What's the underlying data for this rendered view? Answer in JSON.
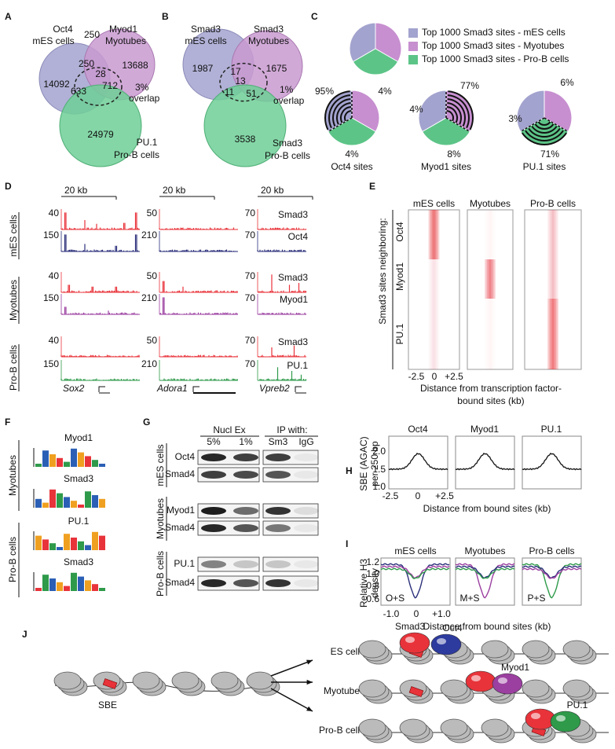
{
  "A": {
    "label": "A",
    "set1": [
      "Oct4",
      "mES cells"
    ],
    "top_count": "250",
    "set2": [
      "Myod1",
      "Myotubes"
    ],
    "set3": [
      "PU.1",
      "Pro-B cells"
    ],
    "counts": [
      "14092",
      "13688",
      "250",
      "28",
      "712",
      "633",
      "24979"
    ],
    "overlap": [
      "3%",
      "overlap"
    ]
  },
  "B": {
    "label": "B",
    "set1": [
      "Smad3",
      "mES cells"
    ],
    "set2": [
      "Smad3",
      "Myotubes"
    ],
    "set3": [
      "Smad3",
      "Pro-B cells"
    ],
    "counts": [
      "1987",
      "1675",
      "17",
      "13",
      "11",
      "51",
      "3538"
    ],
    "overlap": [
      "1%",
      "overlap"
    ]
  },
  "C": {
    "label": "C",
    "legend": [
      "Top 1000 Smad3 sites - mES cells",
      "Top 1000 Smad3 sites - Myotubes",
      "Top 1000 Smad3 sites - Pro-B cells"
    ],
    "pies": [
      {
        "title": "Oct4 sites",
        "labels": [
          "95%",
          "4%",
          "4%"
        ]
      },
      {
        "title": "Myod1 sites",
        "labels": [
          "77%",
          "4%",
          "8%"
        ]
      },
      {
        "title": "PU.1 sites",
        "labels": [
          "6%",
          "3%",
          "71%"
        ]
      }
    ]
  },
  "D": {
    "label": "D",
    "scale": [
      "20 kb",
      "20 kb",
      "20 kb"
    ],
    "rows": [
      "mES cells",
      "Myotubes",
      "Pro-B cells"
    ],
    "tracks": [
      "Smad3",
      "Oct4",
      "Smad3",
      "Myod1",
      "Smad3",
      "PU.1"
    ],
    "ranges": [
      [
        "40",
        "150",
        "40",
        "150",
        "40",
        "150"
      ],
      [
        "50",
        "210",
        "50",
        "210",
        "50",
        "210"
      ],
      [
        "70",
        "70",
        "70",
        "70",
        "70",
        "70"
      ]
    ],
    "genes": [
      "Sox2",
      "Adora1",
      "Vpreb2"
    ]
  },
  "E": {
    "label": "E",
    "columns": [
      "mES cells",
      "Myotubes",
      "Pro-B cells"
    ],
    "rows": [
      "Oct4",
      "Myod1",
      "PU.1"
    ],
    "row_title": "Smad3 sites neighboring:",
    "xticks": [
      "-2.5",
      "0",
      "+2.5"
    ],
    "caption": [
      "Distance from transcription factor-",
      "bound sites (kb)"
    ]
  },
  "F": {
    "label": "F",
    "motifs": [
      "Myod1",
      "Smad3",
      "PU.1",
      "Smad3"
    ],
    "groups": [
      "Myotubes",
      "Pro-B cells"
    ]
  },
  "G": {
    "label": "G",
    "headers": [
      "Nucl Ex",
      "IP with:"
    ],
    "lanes": [
      "5%",
      "1%",
      "Sm3",
      "IgG"
    ],
    "rows": [
      "Oct4",
      "Smad4",
      "Myod1",
      "Smad4",
      "PU.1",
      "Smad4"
    ],
    "groups": [
      "mES cells",
      "Myotubes",
      "Pro-B cells"
    ]
  },
  "H": {
    "label": "H",
    "titles": [
      "Oct4",
      "Myod1",
      "PU.1"
    ],
    "ylabel": [
      "SBE (AGAC)",
      "per 250 bp"
    ],
    "yticks": [
      "2.0",
      "1.5",
      "1.0"
    ],
    "xticks": [
      "-2.5",
      "0",
      "+2.5"
    ],
    "caption": "Distance from bound sites (kb)"
  },
  "I": {
    "label": "I",
    "titles": [
      "mES cells",
      "Myotubes",
      "Pro-B cells"
    ],
    "ylabel": [
      "Relative H3",
      "density"
    ],
    "yticks": [
      "1.2",
      "1.0",
      "0.8",
      "0.6"
    ],
    "insets": [
      "O+S",
      "M+S",
      "P+S"
    ],
    "xticks": [
      "-1.0",
      "0",
      "+1.0"
    ],
    "caption": "Distance from bound sites (kb)"
  },
  "J": {
    "label": "J",
    "sbe": "SBE",
    "cells": [
      "ES cell",
      "Myotube",
      "Pro-B cell"
    ],
    "factors": [
      "Smad3",
      "Oct4",
      "Myod1",
      "PU.1"
    ]
  }
}
